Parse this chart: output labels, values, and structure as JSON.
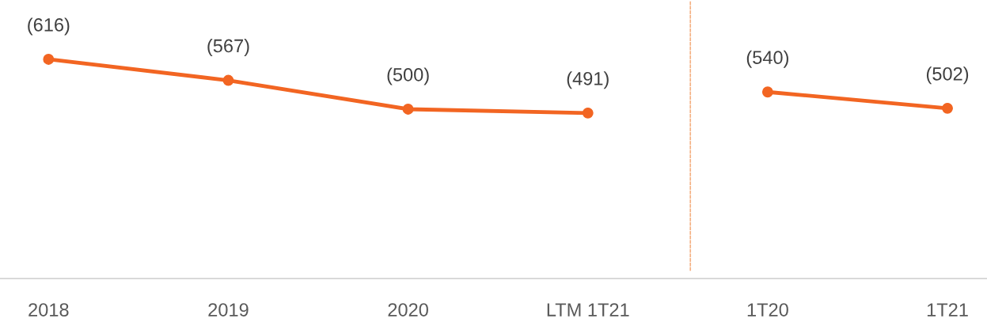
{
  "chart_data": {
    "type": "line",
    "categories": [
      "2018",
      "2019",
      "2020",
      "LTM 1T21",
      "1T20",
      "1T21"
    ],
    "series": [
      {
        "color": "#f26522",
        "values": [
          616,
          567,
          500,
          491,
          null,
          null
        ],
        "value_labels": [
          "(616)",
          "(567)",
          "(500)",
          "(491)",
          null,
          null
        ]
      },
      {
        "color": "#f26522",
        "values": [
          null,
          null,
          null,
          null,
          540,
          502
        ],
        "value_labels": [
          null,
          null,
          null,
          null,
          "(540)",
          "(502)"
        ]
      }
    ],
    "tick_labels": "x",
    "marker": "circle",
    "line_style": "solid",
    "grid": false,
    "legend": false
  }
}
